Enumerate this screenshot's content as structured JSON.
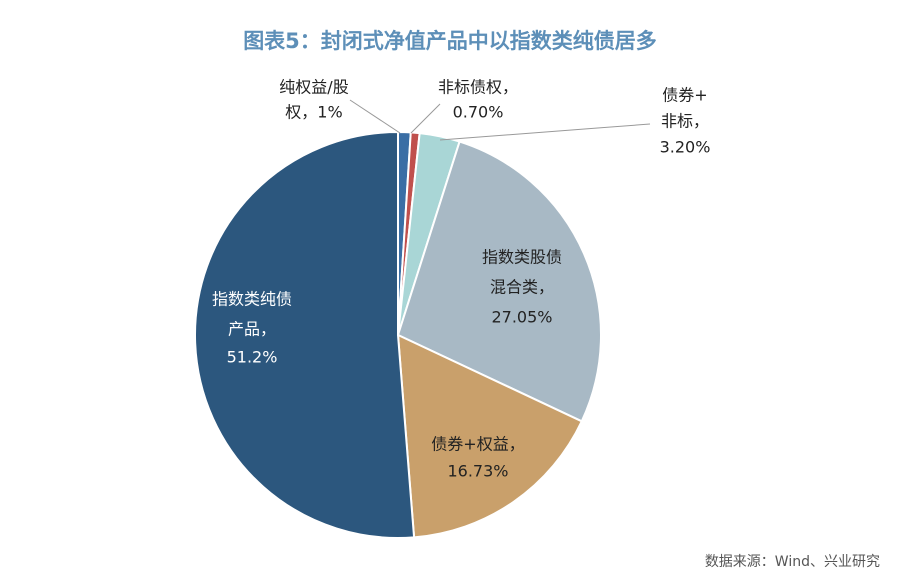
{
  "chart_data": {
    "type": "pie",
    "title": "图表5：封闭式净值产品中以指数类纯债居多",
    "source": "数据来源：Wind、兴业研究",
    "categories": [
      [
        "纯权益/股",
        "权，1%"
      ],
      [
        "非标债权，",
        "0.70%"
      ],
      [
        "债券+",
        "非标，",
        "3.20%"
      ],
      [
        "指数类股债",
        "混合类，",
        "27.05%"
      ],
      [
        "债券+权益，",
        "16.73%"
      ],
      [
        "指数类纯债",
        "产品，",
        "51.2%"
      ]
    ],
    "values": [
      1,
      0.7,
      3.2,
      27.05,
      16.73,
      51.2
    ],
    "colors": [
      "#3a6ea5",
      "#c0504d",
      "#a9d6d6",
      "#a8b9c5",
      "#c9a06b",
      "#2c577e"
    ]
  }
}
